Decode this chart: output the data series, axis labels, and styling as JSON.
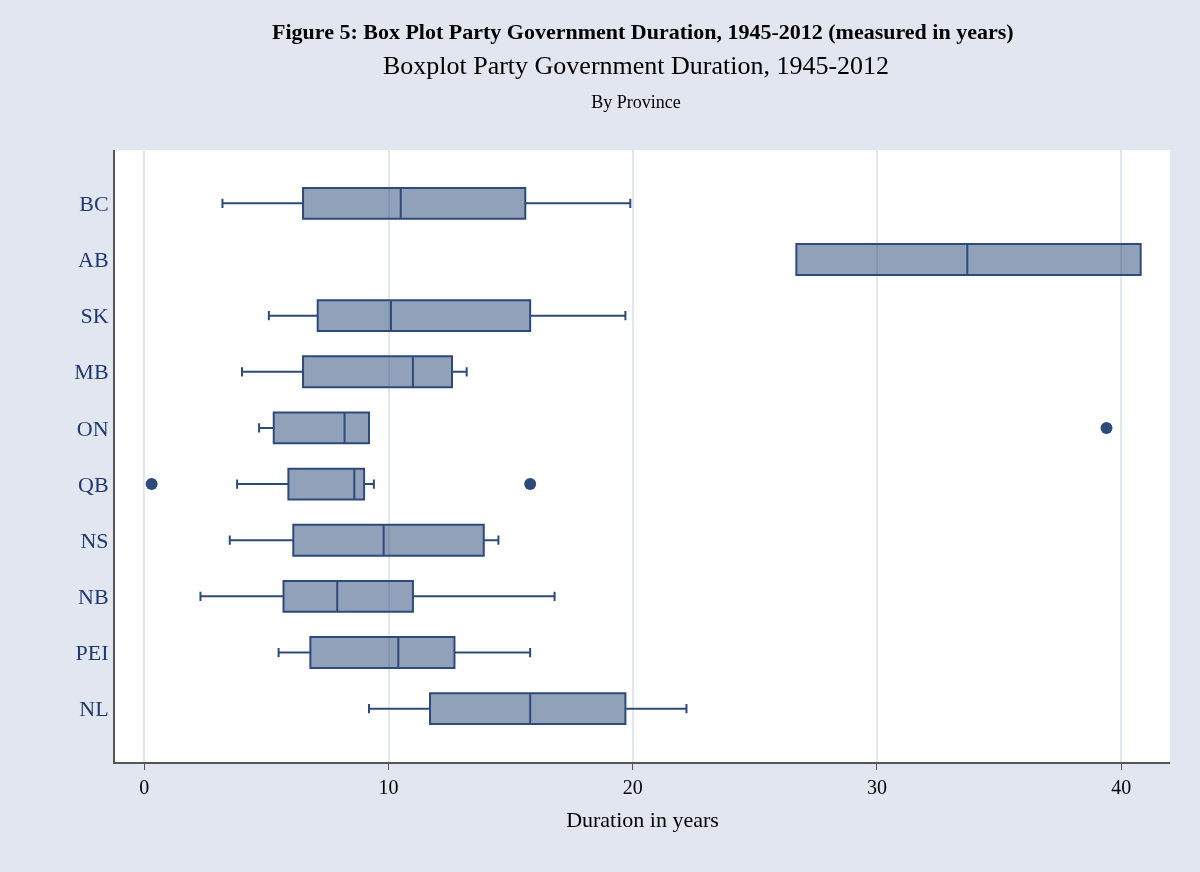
{
  "chart_data": {
    "type": "box",
    "orientation": "horizontal",
    "title": "Boxplot Party Government Duration, 1945-2012",
    "subtitle": "By Province",
    "annotations": [
      "Figure 5: Box Plot Party Government Duration, 1945-2012 (measured in years)"
    ],
    "xlabel": "Duration in years",
    "categories": [
      "BC",
      "AB",
      "SK",
      "MB",
      "ON",
      "QB",
      "NS",
      "NB",
      "PEI",
      "NL"
    ],
    "boxes": [
      {
        "low": 3.2,
        "q1": 6.5,
        "median": 10.5,
        "q3": 15.6,
        "high": 19.9
      },
      {
        "low": 26.7,
        "q1": 26.7,
        "median": 33.7,
        "q3": 40.8,
        "high": 40.8
      },
      {
        "low": 5.1,
        "q1": 7.1,
        "median": 10.1,
        "q3": 15.8,
        "high": 19.7
      },
      {
        "low": 4.0,
        "q1": 6.5,
        "median": 11.0,
        "q3": 12.6,
        "high": 13.2
      },
      {
        "low": 4.7,
        "q1": 5.3,
        "median": 8.2,
        "q3": 9.2,
        "high": 9.2,
        "outliers": [
          39.4
        ]
      },
      {
        "low": 3.8,
        "q1": 5.9,
        "median": 8.6,
        "q3": 9.0,
        "high": 9.4,
        "outliers": [
          0.3,
          15.8
        ]
      },
      {
        "low": 3.5,
        "q1": 6.1,
        "median": 9.8,
        "q3": 13.9,
        "high": 14.5
      },
      {
        "low": 2.3,
        "q1": 5.7,
        "median": 7.9,
        "q3": 11.0,
        "high": 16.8
      },
      {
        "low": 5.5,
        "q1": 6.8,
        "median": 10.4,
        "q3": 12.7,
        "high": 15.8
      },
      {
        "low": 9.2,
        "q1": 11.7,
        "median": 15.8,
        "q3": 19.7,
        "high": 22.2
      }
    ],
    "color": "#2e4a7a",
    "xlim": [
      -1.2,
      42
    ],
    "xticks": [
      0,
      10,
      20,
      30,
      40
    ],
    "grid": "x"
  }
}
